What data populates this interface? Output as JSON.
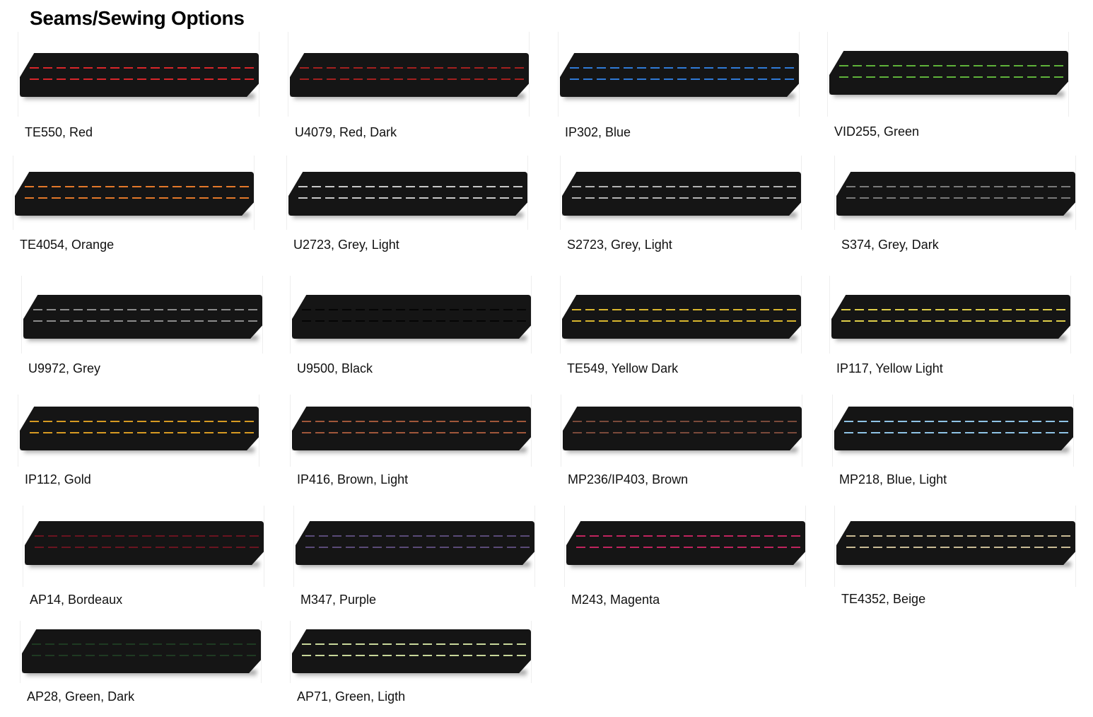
{
  "title": "Seams/Sewing Options",
  "swatches": [
    {
      "label": "TE550, Red",
      "stitch_color": "#d8262a"
    },
    {
      "label": "U4079, Red, Dark",
      "stitch_color": "#a3201f"
    },
    {
      "label": "IP302, Blue",
      "stitch_color": "#2f7ad6"
    },
    {
      "label": "VID255, Green",
      "stitch_color": "#5fb33a"
    },
    {
      "label": "TE4054, Orange",
      "stitch_color": "#e3782a"
    },
    {
      "label": "U2723, Grey, Light",
      "stitch_color": "#c8c8c8"
    },
    {
      "label": "S2723, Grey, Light",
      "stitch_color": "#b4b4b4"
    },
    {
      "label": "S374, Grey, Dark",
      "stitch_color": "#7a7a7a"
    },
    {
      "label": "U9972, Grey",
      "stitch_color": "#8c8c8c"
    },
    {
      "label": "U9500, Black",
      "stitch_color": "#050505"
    },
    {
      "label": "TE549, Yellow Dark",
      "stitch_color": "#d9b72e"
    },
    {
      "label": "IP117, Yellow Light",
      "stitch_color": "#e0cf4a"
    },
    {
      "label": "IP112, Gold",
      "stitch_color": "#d69a22"
    },
    {
      "label": "IP416, Brown, Light",
      "stitch_color": "#a0573a"
    },
    {
      "label": "MP236/IP403, Brown",
      "stitch_color": "#7a4a3a"
    },
    {
      "label": "MP218, Blue, Light",
      "stitch_color": "#8fc3e6"
    },
    {
      "label": "AP14, Bordeaux",
      "stitch_color": "#6a1420"
    },
    {
      "label": "M347, Purple",
      "stitch_color": "#5a4a78"
    },
    {
      "label": "M243, Magenta",
      "stitch_color": "#c0245e"
    },
    {
      "label": "TE4352, Beige",
      "stitch_color": "#c9bb94"
    },
    {
      "label": "AP28, Green, Dark",
      "stitch_color": "#1e3a22"
    },
    {
      "label": "AP71, Green, Ligth",
      "stitch_color": "#c8d79a"
    }
  ]
}
